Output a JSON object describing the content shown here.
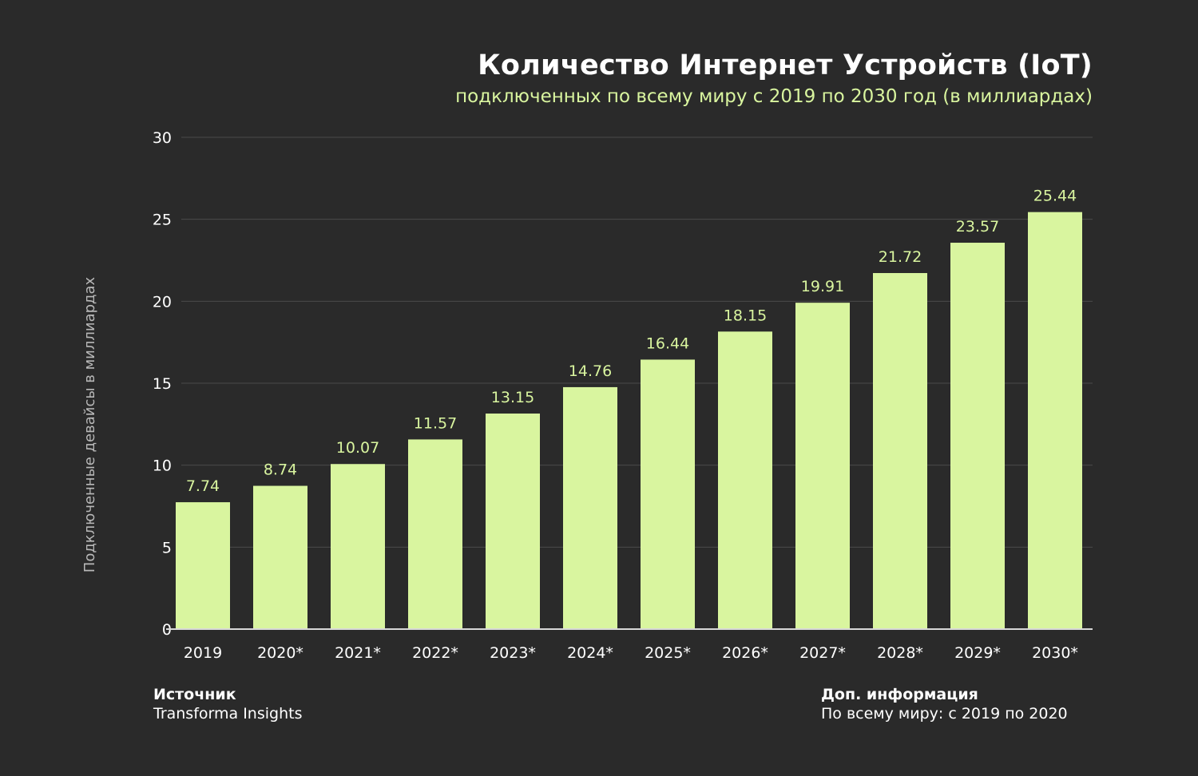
{
  "header": {
    "title": "Количество Интернет Устройств (IoT)",
    "subtitle": "подключенных по всему миру с 2019 по 2030 год (в миллиардах)"
  },
  "footer": {
    "source_heading": "Источник",
    "source_text": "Transforma Insights",
    "info_heading": "Доп. информация",
    "info_text": "По всему миру: с 2019 по 2020"
  },
  "colors": {
    "background": "#2a2a2a",
    "bar": "#d9f59f",
    "accent_text": "#d9f59f"
  },
  "chart_data": {
    "type": "bar",
    "title": "Количество Интернет Устройств (IoT)",
    "subtitle": "подключенных по всему миру с 2019 по 2030 год (в миллиардах)",
    "xlabel": "",
    "ylabel": "Подключенные девайсы в миллиардах",
    "categories": [
      "2019",
      "2020*",
      "2021*",
      "2022*",
      "2023*",
      "2024*",
      "2025*",
      "2026*",
      "2027*",
      "2028*",
      "2029*",
      "2030*"
    ],
    "values": [
      7.74,
      8.74,
      10.07,
      11.57,
      13.15,
      14.76,
      16.44,
      18.15,
      19.91,
      21.72,
      23.57,
      25.44
    ],
    "value_labels": [
      "7.74",
      "8.74",
      "10.07",
      "11.57",
      "13.15",
      "14.76",
      "16.44",
      "18.15",
      "19.91",
      "21.72",
      "23.57",
      "25.44"
    ],
    "yticks": [
      0,
      5,
      10,
      15,
      20,
      25,
      30
    ],
    "ylim": [
      0,
      30
    ],
    "grid": true
  }
}
